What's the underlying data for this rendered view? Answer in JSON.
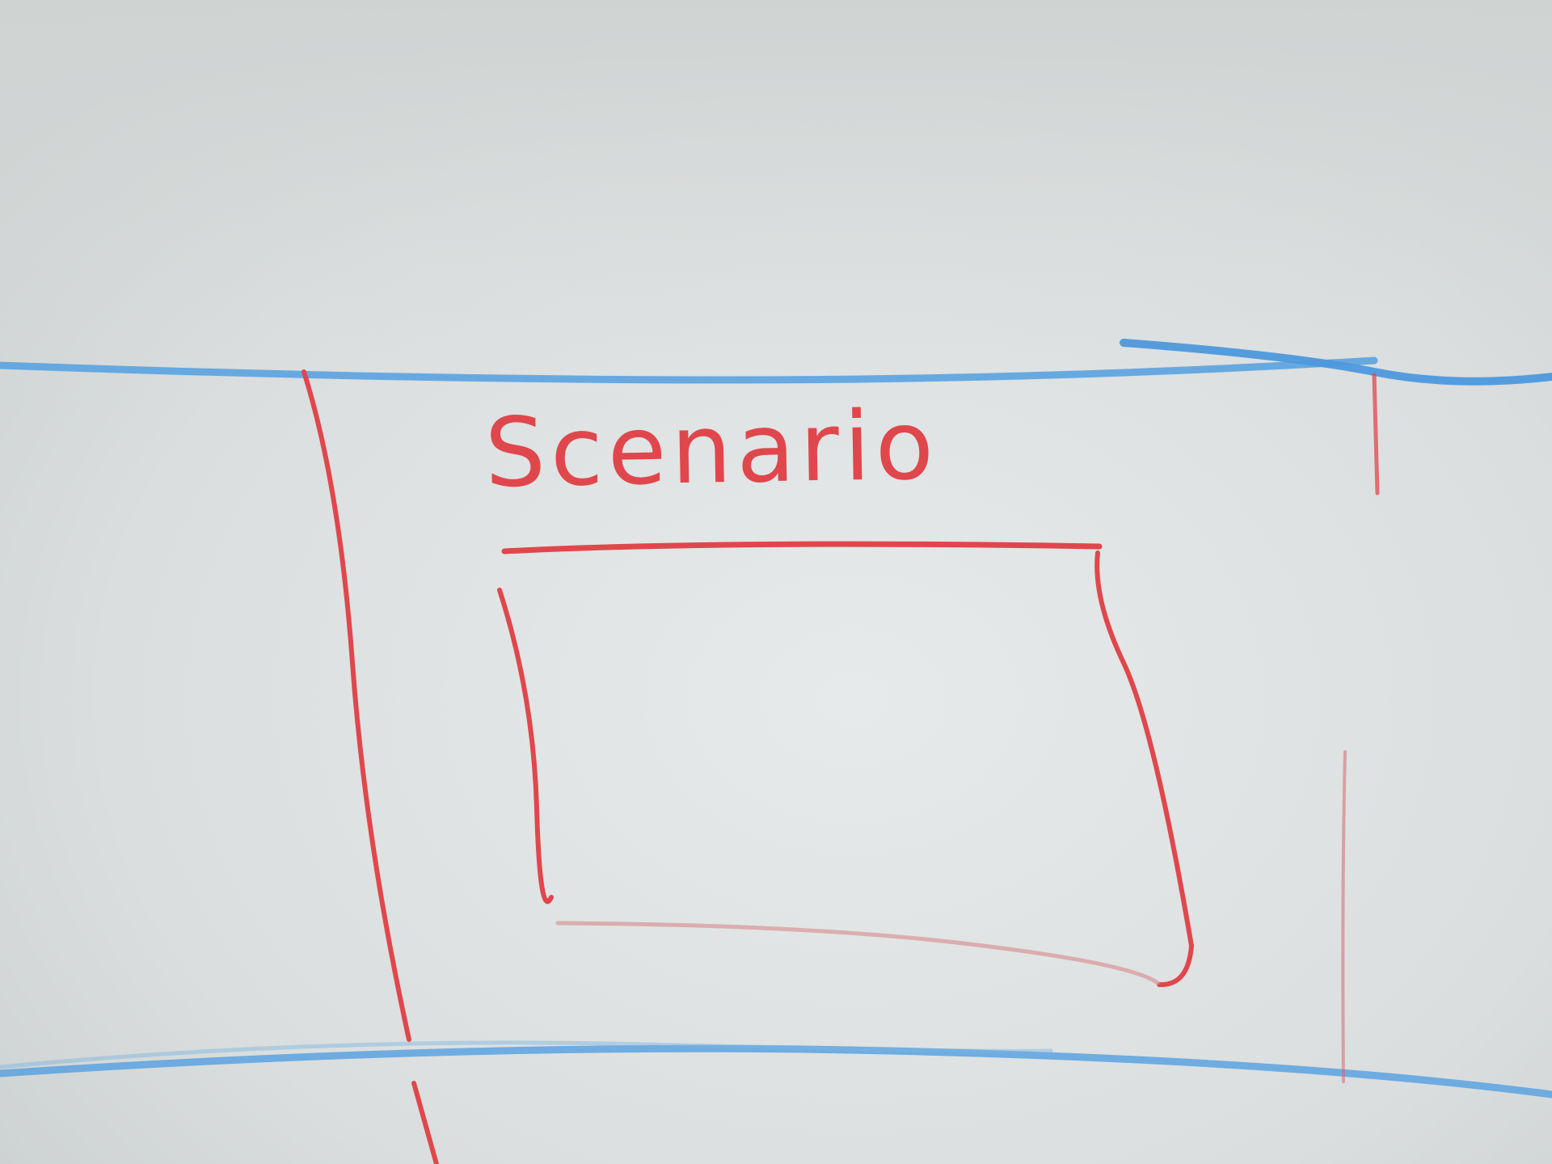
{
  "title": "Scenario",
  "colors": {
    "board": "#dfe3e3",
    "red_marker": "#e0474c",
    "blue_marker": "#5aa2e0"
  }
}
